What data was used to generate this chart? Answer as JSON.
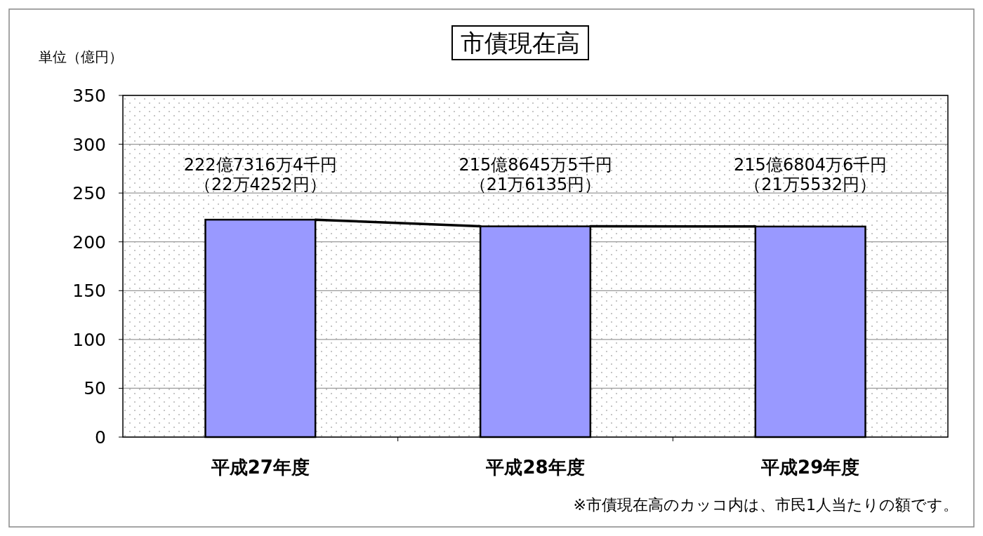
{
  "chart_data": {
    "type": "bar",
    "title": "市債現在高",
    "ylabel": "単位（億円）",
    "categories": [
      "平成27年度",
      "平成28年度",
      "平成29年度"
    ],
    "values": [
      222.7,
      215.9,
      215.7
    ],
    "color": "#9999ff",
    "ylim": [
      0,
      350
    ],
    "yticks": [
      0,
      50,
      100,
      150,
      200,
      250,
      300,
      350
    ],
    "grid": "y",
    "annotations": [
      "222億7316万4千円",
      "（22万4252円）",
      "215億8645万5千円",
      "（21万6135円）",
      "215億6804万6千円",
      "（21万5532円）",
      "※市債現在高のカッコ内は、市民1人当たりの額です。"
    ]
  }
}
